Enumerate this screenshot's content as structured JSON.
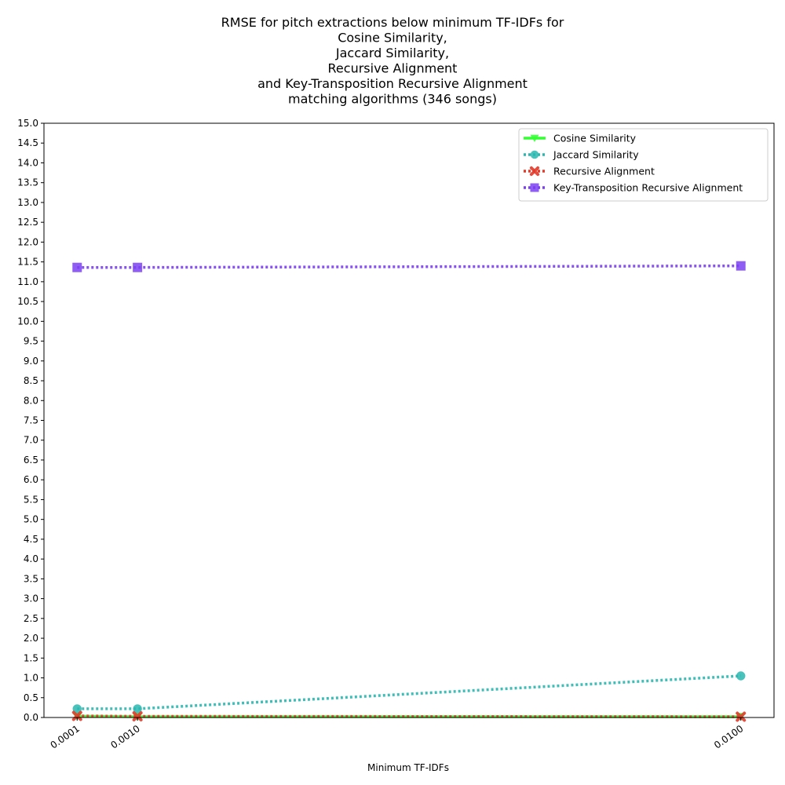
{
  "chart_data": {
    "type": "line",
    "title_lines": [
      "RMSE for pitch extractions below minimum TF-IDFs for",
      "Cosine Similarity,",
      "Jaccard Similarity,",
      "Recursive Alignment",
      "and Key-Transposition Recursive Alignment",
      "matching algorithms (346 songs)"
    ],
    "xlabel": "Minimum TF-IDFs",
    "ylabel": "",
    "x": [
      0.0001,
      0.001,
      0.01
    ],
    "x_tick_labels": [
      "0.0001",
      "0.0010",
      "0.0100"
    ],
    "ylim": [
      0,
      15
    ],
    "y_tick_step": 0.5,
    "y_tick_labels": [
      "0.0",
      "0.5",
      "1.0",
      "1.5",
      "2.0",
      "2.5",
      "3.0",
      "3.5",
      "4.0",
      "4.5",
      "5.0",
      "5.5",
      "6.0",
      "6.5",
      "7.0",
      "7.5",
      "8.0",
      "8.5",
      "9.0",
      "9.5",
      "10.0",
      "10.5",
      "11.0",
      "11.5",
      "12.0",
      "12.5",
      "13.0",
      "13.5",
      "14.0",
      "14.5",
      "15.0"
    ],
    "grid": false,
    "legend_position": "top-right",
    "series": [
      {
        "name": "Cosine Similarity",
        "values": [
          0.03,
          0.02,
          0.02
        ],
        "color": "#33ff33",
        "marker": "triangle-down",
        "line_style": "solid"
      },
      {
        "name": "Jaccard Similarity",
        "values": [
          0.22,
          0.22,
          1.05
        ],
        "color": "#2ab7b0",
        "marker": "circle",
        "line_style": "dotted"
      },
      {
        "name": "Recursive Alignment",
        "values": [
          0.04,
          0.03,
          0.02
        ],
        "color": "#e23a2a",
        "marker": "x",
        "line_style": "dotted"
      },
      {
        "name": "Key-Transposition Recursive Alignment",
        "values": [
          11.36,
          11.36,
          11.4
        ],
        "color": "#7b3ff2",
        "marker": "square",
        "line_style": "dotted"
      }
    ]
  }
}
